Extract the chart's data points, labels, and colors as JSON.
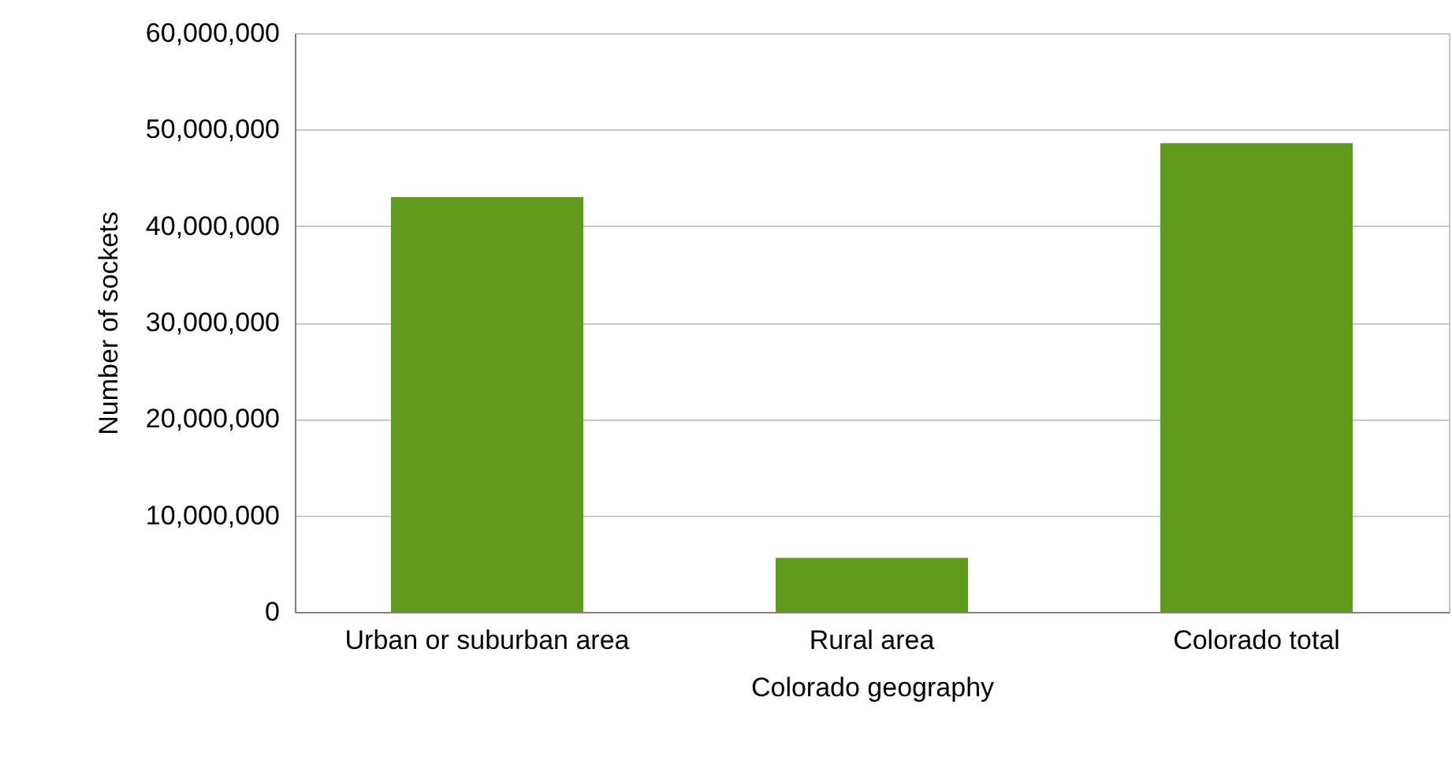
{
  "chart_data": {
    "type": "bar",
    "xlabel": "Colorado geography",
    "ylabel": "Number of sockets",
    "categories": [
      "Urban or suburban area",
      "Rural area",
      "Colorado total"
    ],
    "values": [
      43000000,
      5600000,
      48600000
    ],
    "color": "#5f9a1a",
    "ylim": [
      0,
      60000000
    ],
    "yticks": [
      {
        "value": 0,
        "label": "0"
      },
      {
        "value": 10000000,
        "label": "10,000,000"
      },
      {
        "value": 20000000,
        "label": "20,000,000"
      },
      {
        "value": 30000000,
        "label": "30,000,000"
      },
      {
        "value": 40000000,
        "label": "40,000,000"
      },
      {
        "value": 50000000,
        "label": "50,000,000"
      },
      {
        "value": 60000000,
        "label": "60,000,000"
      }
    ],
    "grid": "y"
  }
}
